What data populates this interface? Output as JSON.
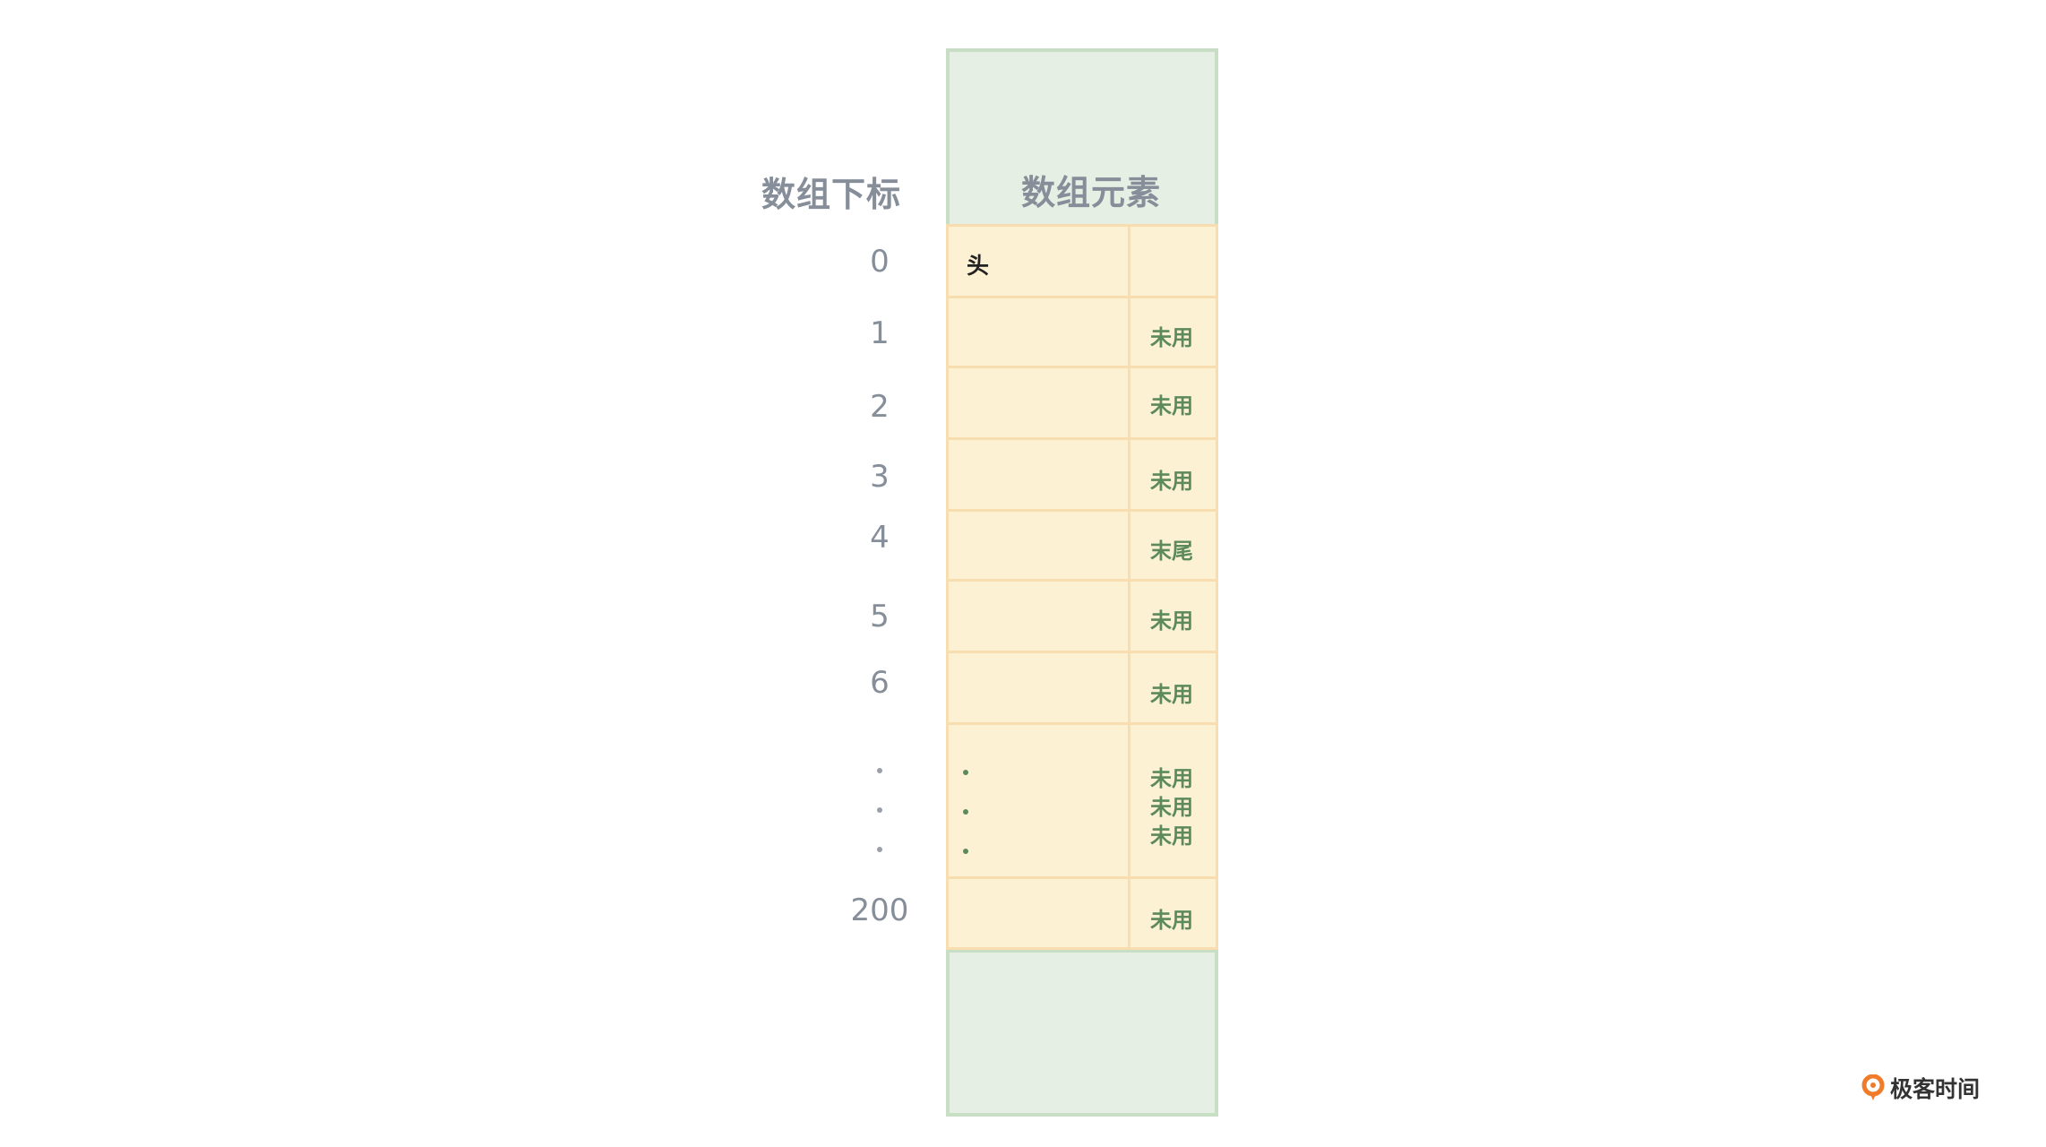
{
  "headers": {
    "index_title": "数组下标",
    "element_title": "数组元素"
  },
  "rows": [
    {
      "index": "0",
      "value": "头",
      "tag": ""
    },
    {
      "index": "1",
      "value": "",
      "tag": "未用"
    },
    {
      "index": "2",
      "value": "",
      "tag": "未用"
    },
    {
      "index": "3",
      "value": "",
      "tag": "未用"
    },
    {
      "index": "4",
      "value": "",
      "tag": "末尾"
    },
    {
      "index": "5",
      "value": "",
      "tag": "未用"
    },
    {
      "index": "6",
      "value": "",
      "tag": "未用"
    }
  ],
  "ellipsis_row": {
    "tags": [
      "未用",
      "未用",
      "未用"
    ]
  },
  "last_row": {
    "index": "200",
    "value": "",
    "tag": "未用"
  },
  "logo": {
    "text": "极客时间",
    "icon": "geektime-logo-icon"
  },
  "colors": {
    "header_bg": "#e5efe3",
    "cell_bg": "#fdf1d4",
    "tag_text": "#5c8a5a",
    "label_text": "#858e99"
  }
}
